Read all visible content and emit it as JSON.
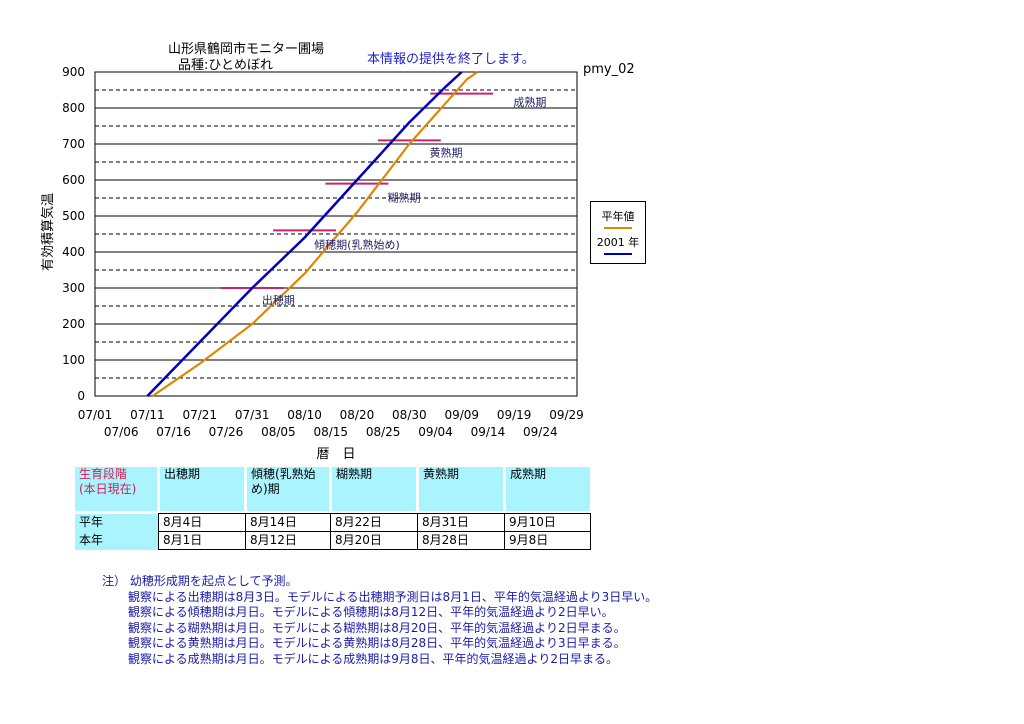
{
  "header": {
    "title_line1": "山形県鶴岡市モニター圃場",
    "title_line2": "品種:ひとめぼれ",
    "notice": "本情報の提供を終了します。",
    "station_id": "pmy_02"
  },
  "chart_data": {
    "type": "line",
    "ylabel": "有効積算気温",
    "xlabel": "暦　日",
    "ylim": [
      0,
      900
    ],
    "yticks": [
      0,
      100,
      200,
      300,
      400,
      500,
      600,
      700,
      800,
      900
    ],
    "xticks_top": [
      "07/01",
      "07/11",
      "07/21",
      "07/31",
      "08/10",
      "08/20",
      "08/30",
      "09/09",
      "09/19",
      "09/29"
    ],
    "xticks_bottom": [
      "07/06",
      "07/16",
      "07/26",
      "08/05",
      "08/15",
      "08/25",
      "09/04",
      "09/14",
      "09/24"
    ],
    "grid": "solid at 100s, dashed at 50s",
    "series": [
      {
        "name": "平年値",
        "color": "#dd8800",
        "points": [
          [
            "07/12",
            0
          ],
          [
            "07/21",
            90
          ],
          [
            "07/31",
            200
          ],
          [
            "08/10",
            340
          ],
          [
            "08/20",
            510
          ],
          [
            "08/30",
            700
          ],
          [
            "09/10",
            880
          ],
          [
            "09/12",
            900
          ]
        ]
      },
      {
        "name": "2001年",
        "color": "#0000bb",
        "points": [
          [
            "07/11",
            0
          ],
          [
            "07/21",
            150
          ],
          [
            "07/31",
            300
          ],
          [
            "08/10",
            440
          ],
          [
            "08/20",
            600
          ],
          [
            "08/30",
            760
          ],
          [
            "09/06",
            860
          ],
          [
            "09/09",
            900
          ]
        ]
      }
    ],
    "thresholds": [
      {
        "stage": "出穂期",
        "value": 300,
        "from": "07/25",
        "to": "08/06"
      },
      {
        "stage": "傾穂期(乳熟始め)",
        "value": 460,
        "from": "08/04",
        "to": "08/16"
      },
      {
        "stage": "糊熟期",
        "value": 590,
        "from": "08/14",
        "to": "08/26"
      },
      {
        "stage": "黄熟期",
        "value": 710,
        "from": "08/24",
        "to": "09/05"
      },
      {
        "stage": "成熟期",
        "value": 840,
        "from": "09/03",
        "to": "09/15"
      }
    ],
    "annotations": [
      {
        "text": "出穂期",
        "x": "08/05",
        "y": 255
      },
      {
        "text": "傾穂期(乳熟始め)",
        "x": "08/20",
        "y": 410
      },
      {
        "text": "糊熟期",
        "x": "08/29",
        "y": 540
      },
      {
        "text": "黄熟期",
        "x": "09/06",
        "y": 665
      },
      {
        "text": "成熟期",
        "x": "09/22",
        "y": 805
      }
    ]
  },
  "legend": {
    "normal": "平年値",
    "current": "2001 年"
  },
  "stage_table": {
    "header_label_line1": "生育段階",
    "header_label_line2": "(本日現在)",
    "stages": [
      "出穂期",
      "傾穂(乳熟始め)期",
      "糊熟期",
      "黄熟期",
      "成熟期"
    ],
    "rows": [
      {
        "label": "平年",
        "values": [
          "8月4日",
          "8月14日",
          "8月22日",
          "8月31日",
          "9月10日"
        ]
      },
      {
        "label": "本年",
        "values": [
          "8月1日",
          "8月12日",
          "8月20日",
          "8月28日",
          "9月8日"
        ]
      }
    ]
  },
  "notes": {
    "heading": "注） 幼穂形成期を起点として予測。",
    "lines": [
      "観察による出穂期は8月3日。モデルによる出穂期予測日は8月1日、平年的気温経過より3日早い。",
      "観察による傾穂期は月日。モデルによる傾穂期は8月12日、平年的気温経過より2日早い。",
      "観察による糊熟期は月日。モデルによる糊熟期は8月20日、平年的気温経過より2日早まる。",
      "観察による黄熟期は月日。モデルによる黄熟期は8月28日、平年的気温経過より3日早まる。",
      "観察による成熟期は月日。モデルによる成熟期は9月8日、平年的気温経過より2日早まる。"
    ]
  }
}
